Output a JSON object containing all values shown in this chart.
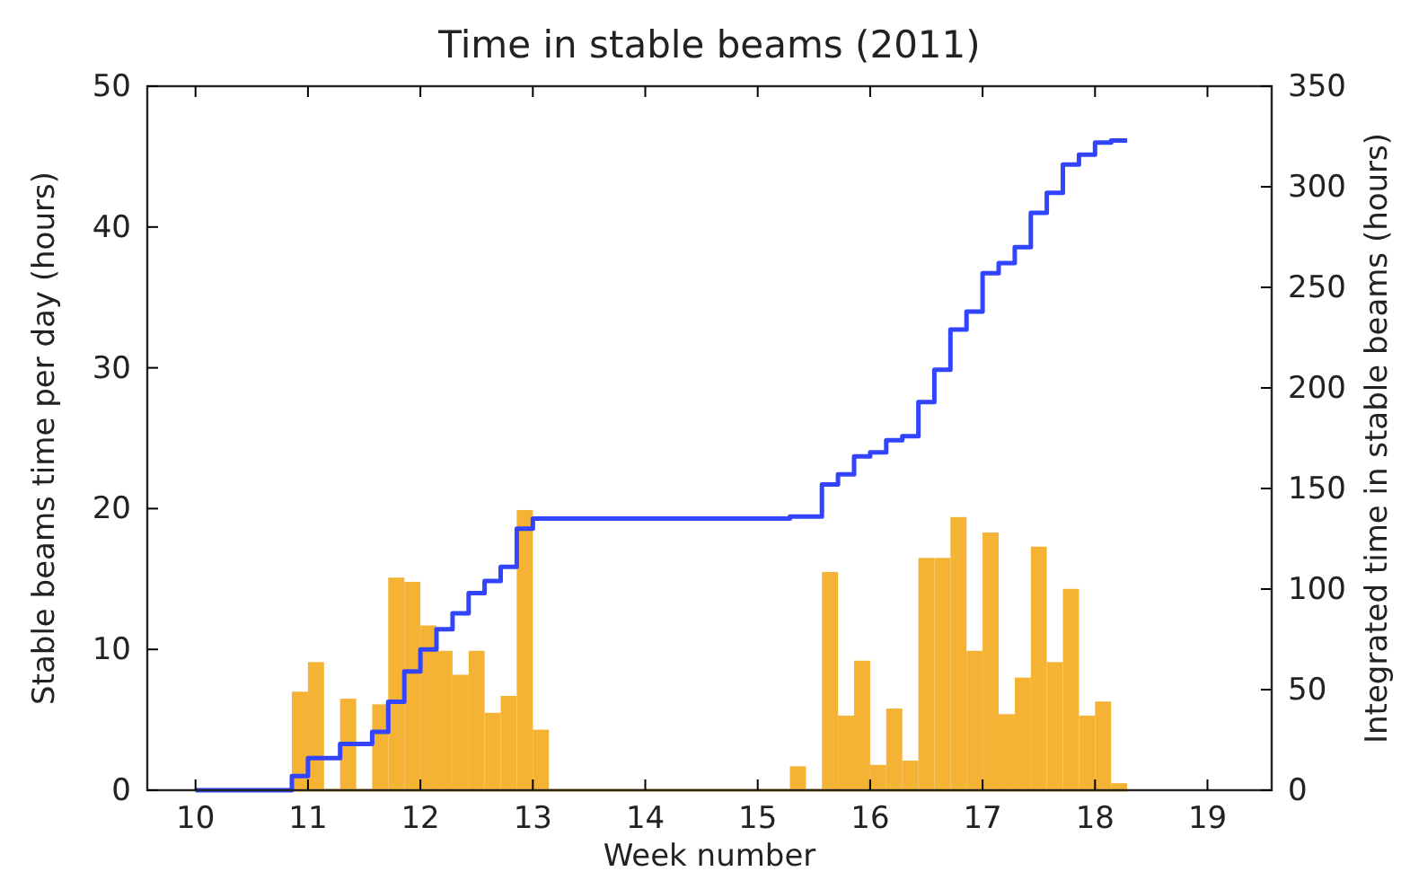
{
  "chart_data": {
    "type": "histogram",
    "title": "Time in stable beams (2011)",
    "xlabel": "Week number",
    "ylabel": "Stable beams time per day (hours)",
    "y2label": "Integrated time in stable beams (hours)",
    "bins": [
      10,
      10.143,
      10.286,
      10.429,
      10.571,
      10.714,
      10.857,
      11,
      11.143,
      11.286,
      11.429,
      11.571,
      11.714,
      11.857,
      12,
      12.143,
      12.286,
      12.429,
      12.571,
      12.714,
      12.857,
      13,
      13.143,
      13.286,
      13.429,
      13.571,
      13.714,
      13.857,
      14,
      14.143,
      14.286,
      14.429,
      14.571,
      14.714,
      14.857,
      15,
      15.143,
      15.286,
      15.429,
      15.571,
      15.714,
      15.857,
      16,
      16.143,
      16.286,
      16.429,
      16.571,
      16.714,
      16.857,
      17,
      17.143,
      17.286,
      17.429,
      17.571,
      17.714,
      17.857,
      18,
      18.143,
      18.286
    ],
    "series": [
      {
        "color": "#f5b335",
        "values": [
          0,
          0,
          0,
          0,
          0,
          0,
          7.0,
          9.1,
          0,
          6.5,
          0,
          6.1,
          15.1,
          14.8,
          11.7,
          9.9,
          8.2,
          9.9,
          5.5,
          6.7,
          19.9,
          4.3,
          0,
          0,
          0,
          0,
          0,
          0,
          0,
          0,
          0,
          0,
          0,
          0,
          0,
          0,
          0,
          1.7,
          0,
          15.5,
          5.3,
          9.2,
          1.8,
          5.8,
          2.1,
          16.5,
          16.5,
          19.4,
          9.9,
          18.3,
          5.4,
          8.0,
          17.3,
          9.1,
          14.3,
          5.3,
          6.3,
          0.5
        ]
      },
      {
        "type": "step",
        "axis": "y2",
        "color": "#3344ff",
        "x": [
          10,
          10.857,
          11,
          11.143,
          11.286,
          11.429,
          11.571,
          11.714,
          11.857,
          12,
          12.143,
          12.286,
          12.429,
          12.571,
          12.714,
          12.857,
          13,
          15.286,
          15.429,
          15.571,
          15.714,
          15.857,
          16,
          16.143,
          16.286,
          16.429,
          16.571,
          16.714,
          16.857,
          17,
          17.143,
          17.286,
          17.429,
          17.571,
          17.714,
          17.857,
          18,
          18.143,
          18.286
        ],
        "values": [
          0,
          7,
          16,
          16,
          23,
          23,
          29,
          44,
          59,
          70,
          80,
          88,
          98,
          104,
          111,
          130,
          135,
          136,
          136,
          152,
          157,
          166,
          168,
          174,
          176,
          193,
          209,
          229,
          238,
          257,
          262,
          270,
          287,
          297,
          311,
          316,
          322,
          323,
          323
        ]
      }
    ],
    "xlim": [
      9.571,
      19.571
    ],
    "xticks": [
      10,
      11,
      12,
      13,
      14,
      15,
      16,
      17,
      18,
      19
    ],
    "ylim": [
      0,
      50
    ],
    "yticks": [
      0,
      10,
      20,
      30,
      40,
      50
    ],
    "y2lim": [
      0,
      350
    ],
    "y2ticks": [
      0,
      50,
      100,
      150,
      200,
      250,
      300,
      350
    ]
  }
}
